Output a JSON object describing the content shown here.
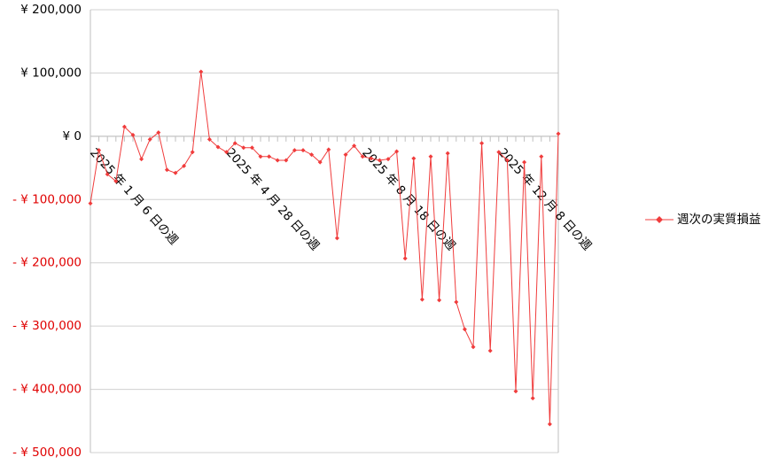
{
  "chart_data": {
    "type": "line",
    "categories": [
      "2025 年 1 月 6 日の週",
      null,
      null,
      null,
      null,
      null,
      null,
      null,
      null,
      null,
      null,
      null,
      null,
      null,
      null,
      null,
      "2025 年 4 月 28 日の週",
      null,
      null,
      null,
      null,
      null,
      null,
      null,
      null,
      null,
      null,
      null,
      null,
      null,
      null,
      null,
      "2025 年 8 月 18 日の週",
      null,
      null,
      null,
      null,
      null,
      null,
      null,
      null,
      null,
      null,
      null,
      null,
      null,
      null,
      null,
      "2025 年 12 月 8 日の週",
      null,
      null,
      null,
      null,
      null,
      null,
      null
    ],
    "series": [
      {
        "name": "週次の実質損益",
        "color": "#f03c3c",
        "values": [
          -106000,
          -22000,
          -60000,
          -71000,
          15000,
          2000,
          -36000,
          -5000,
          6000,
          -53000,
          -58000,
          -47000,
          -25000,
          102000,
          -5000,
          -17000,
          -25000,
          -11000,
          -18000,
          -18000,
          -32000,
          -32000,
          -38000,
          -38000,
          -22000,
          -22000,
          -29000,
          -41000,
          -21000,
          -161000,
          -29000,
          -15000,
          -32000,
          -35000,
          -38000,
          -36000,
          -24000,
          -193000,
          -35000,
          -258000,
          -32000,
          -259000,
          -27000,
          -262000,
          -305000,
          -333000,
          -11000,
          -339000,
          -25000,
          -38000,
          -403000,
          -41000,
          -414000,
          -32000,
          -455000,
          4000
        ]
      }
    ],
    "ylim": [
      -500000,
      200000
    ],
    "yticks": [
      {
        "value": -500000,
        "label": "- ¥ 500,000"
      },
      {
        "value": -400000,
        "label": "- ¥ 400,000"
      },
      {
        "value": -300000,
        "label": "- ¥ 300,000"
      },
      {
        "value": -200000,
        "label": "- ¥ 200,000"
      },
      {
        "value": -100000,
        "label": "- ¥ 100,000"
      },
      {
        "value": 0,
        "label": "¥ 0"
      },
      {
        "value": 100000,
        "label": "¥ 100,000"
      },
      {
        "value": 200000,
        "label": "¥ 200,000"
      }
    ],
    "grid": true,
    "legend": "right"
  }
}
